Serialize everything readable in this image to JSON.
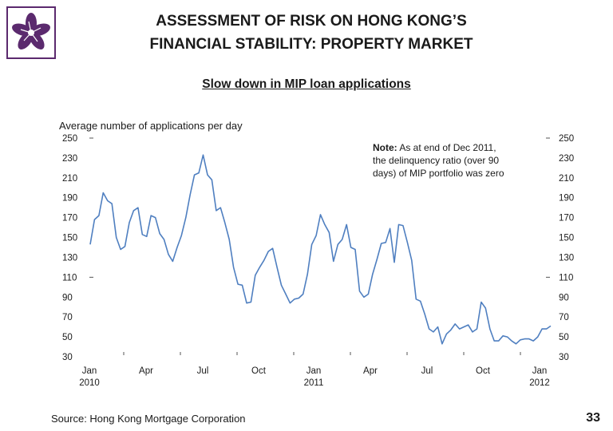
{
  "header": {
    "title_line1": "ASSESSMENT OF RISK ON HONG KONG’S",
    "title_line2": "FINANCIAL STABILITY: PROPERTY MARKET",
    "subtitle": "Slow down in MIP loan applications"
  },
  "logo": {
    "name": "bauhinia-flower-icon",
    "color": "#5b2a6e"
  },
  "footer": {
    "source": "Source: Hong Kong Mortgage Corporation",
    "page_number": "33"
  },
  "colors": {
    "line": "#4f7fc0",
    "brand": "#5b2a6e"
  },
  "chart_data": {
    "type": "line",
    "title": "",
    "ylabel": "Average number of applications per day",
    "xlabel": "",
    "ylim": [
      30,
      250
    ],
    "yticks": [
      250,
      230,
      210,
      190,
      170,
      150,
      130,
      110,
      90,
      70,
      50,
      30
    ],
    "x_tick_labels": [
      {
        "line1": "Jan",
        "line2": "2010"
      },
      {
        "line1": "Apr",
        "line2": ""
      },
      {
        "line1": "Jul",
        "line2": ""
      },
      {
        "line1": "Oct",
        "line2": ""
      },
      {
        "line1": "Jan",
        "line2": "2011"
      },
      {
        "line1": "Apr",
        "line2": ""
      },
      {
        "line1": "Jul",
        "line2": ""
      },
      {
        "line1": "Oct",
        "line2": ""
      },
      {
        "line1": "Jan",
        "line2": "2012"
      }
    ],
    "note_lines": [
      {
        "bold": "Note:",
        "text": "  As at end of Dec 2011,"
      },
      {
        "bold": "",
        "text": "the delinquency ratio (over 90"
      },
      {
        "bold": "",
        "text": "days) of MIP portfolio was zero"
      }
    ],
    "grid": false,
    "legend": "none",
    "series": [
      {
        "values": [
          143,
          168,
          172,
          195,
          187,
          184,
          150,
          138,
          141,
          165,
          177,
          180,
          153,
          151,
          172,
          170,
          154,
          148,
          133,
          126,
          140,
          152,
          170,
          193,
          213,
          215,
          233,
          213,
          208,
          177,
          180,
          165,
          148,
          120,
          103,
          102,
          84,
          85,
          112,
          120,
          127,
          136,
          139,
          120,
          102,
          93,
          84,
          88,
          89,
          93,
          113,
          143,
          152,
          173,
          163,
          155,
          126,
          143,
          148,
          163,
          140,
          138,
          96,
          90,
          93,
          113,
          128,
          144,
          145,
          159,
          125,
          163,
          162,
          145,
          127,
          88,
          86,
          73,
          58,
          55,
          60,
          43,
          53,
          57,
          63,
          58,
          60,
          62,
          55,
          58,
          85,
          79,
          58,
          46,
          46,
          51,
          50,
          46,
          43,
          47,
          48,
          48,
          46,
          50,
          58,
          58,
          61
        ]
      }
    ]
  }
}
